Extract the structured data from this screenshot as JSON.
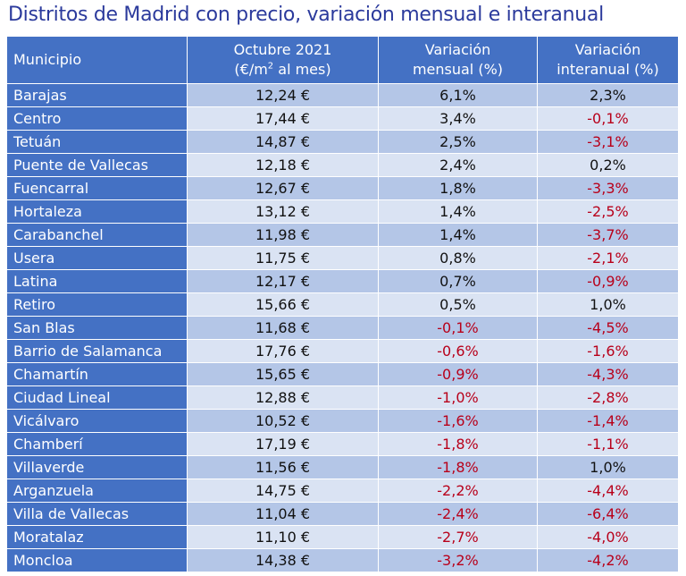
{
  "title": "Distritos de Madrid con precio, variación mensual e interanual",
  "headers": {
    "municipio": "Municipio",
    "precio_line1": "Octubre 2021",
    "precio_line2_a": "(€/m",
    "precio_line2_sup": "2",
    "precio_line2_b": " al mes)",
    "mensual_line1": "Variación",
    "mensual_line2": "mensual (%)",
    "interanual_line1": "Variación",
    "interanual_line2": "interanual (%)"
  },
  "rows": [
    {
      "municipio": "Barajas",
      "precio": "12,24 €",
      "mensual": "6,1%",
      "interanual": "2,3%"
    },
    {
      "municipio": "Centro",
      "precio": "17,44 €",
      "mensual": "3,4%",
      "interanual": "-0,1%"
    },
    {
      "municipio": "Tetuán",
      "precio": "14,87 €",
      "mensual": "2,5%",
      "interanual": "-3,1%"
    },
    {
      "municipio": "Puente de Vallecas",
      "precio": "12,18 €",
      "mensual": "2,4%",
      "interanual": "0,2%"
    },
    {
      "municipio": "Fuencarral",
      "precio": "12,67 €",
      "mensual": "1,8%",
      "interanual": "-3,3%"
    },
    {
      "municipio": "Hortaleza",
      "precio": "13,12 €",
      "mensual": "1,4%",
      "interanual": "-2,5%"
    },
    {
      "municipio": "Carabanchel",
      "precio": "11,98 €",
      "mensual": "1,4%",
      "interanual": "-3,7%"
    },
    {
      "municipio": "Usera",
      "precio": "11,75 €",
      "mensual": "0,8%",
      "interanual": "-2,1%"
    },
    {
      "municipio": "Latina",
      "precio": "12,17 €",
      "mensual": "0,7%",
      "interanual": "-0,9%"
    },
    {
      "municipio": "Retiro",
      "precio": "15,66 €",
      "mensual": "0,5%",
      "interanual": "1,0%"
    },
    {
      "municipio": "San Blas",
      "precio": "11,68 €",
      "mensual": "-0,1%",
      "interanual": "-4,5%"
    },
    {
      "municipio": "Barrio de Salamanca",
      "precio": "17,76 €",
      "mensual": "-0,6%",
      "interanual": "-1,6%"
    },
    {
      "municipio": "Chamartín",
      "precio": "15,65 €",
      "mensual": "-0,9%",
      "interanual": "-4,3%"
    },
    {
      "municipio": "Ciudad Lineal",
      "precio": "12,88 €",
      "mensual": "-1,0%",
      "interanual": "-2,8%"
    },
    {
      "municipio": "Vicálvaro",
      "precio": "10,52 €",
      "mensual": "-1,6%",
      "interanual": "-1,4%"
    },
    {
      "municipio": "Chamberí",
      "precio": "17,19 €",
      "mensual": "-1,8%",
      "interanual": "-1,1%"
    },
    {
      "municipio": "Villaverde",
      "precio": "11,56 €",
      "mensual": "-1,8%",
      "interanual": "1,0%"
    },
    {
      "municipio": "Arganzuela",
      "precio": "14,75 €",
      "mensual": "-2,2%",
      "interanual": "-4,4%"
    },
    {
      "municipio": "Villa de Vallecas",
      "precio": "11,04 €",
      "mensual": "-2,4%",
      "interanual": "-6,4%"
    },
    {
      "municipio": "Moratalaz",
      "precio": "11,10 €",
      "mensual": "-2,7%",
      "interanual": "-4,0%"
    },
    {
      "municipio": "Moncloa",
      "precio": "14,38 €",
      "mensual": "-3,2%",
      "interanual": "-4,2%"
    }
  ],
  "colors": {
    "title": "#2b3a9c",
    "header_bg": "#4471c4",
    "row_dark": "#b4c6e7",
    "row_light": "#dae3f3",
    "negative": "#b8001a"
  }
}
